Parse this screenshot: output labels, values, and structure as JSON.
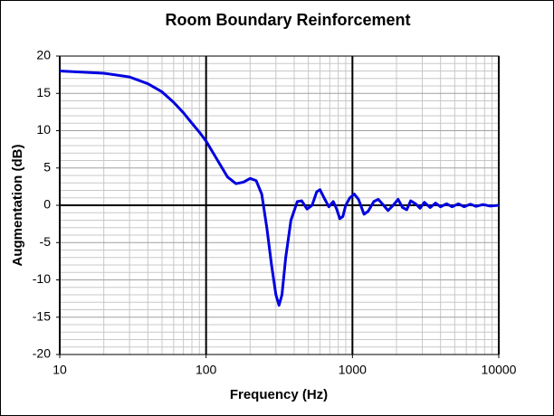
{
  "chart_data": {
    "type": "line",
    "title": "Room Boundary Reinforcement",
    "x_label": "Frequency (Hz)",
    "y_label": "Augmentation (dB)",
    "xscale": "log",
    "xlim": [
      10,
      10000
    ],
    "ylim": [
      -20,
      20
    ],
    "xticks": [
      10,
      100,
      1000,
      10000
    ],
    "yticks": [
      -20,
      -15,
      -10,
      -5,
      0,
      5,
      10,
      15,
      20
    ],
    "minor_xticks": [
      20,
      30,
      40,
      50,
      60,
      70,
      80,
      90,
      200,
      300,
      400,
      500,
      600,
      700,
      800,
      900,
      2000,
      3000,
      4000,
      5000,
      6000,
      7000,
      8000,
      9000
    ],
    "minor_yticks": [
      -19,
      -18,
      -17,
      -16,
      -14,
      -13,
      -12,
      -11,
      -9,
      -8,
      -7,
      -6,
      -4,
      -3,
      -2,
      -1,
      1,
      2,
      3,
      4,
      6,
      7,
      8,
      9,
      11,
      12,
      13,
      14,
      16,
      17,
      18,
      19
    ],
    "grid": true,
    "series": [
      {
        "name": "Augmentation",
        "color": "#0000e0",
        "x": [
          10,
          20,
          30,
          40,
          50,
          60,
          70,
          80,
          90,
          100,
          120,
          140,
          160,
          180,
          200,
          220,
          240,
          260,
          280,
          300,
          315,
          330,
          350,
          380,
          420,
          450,
          490,
          530,
          570,
          600,
          640,
          690,
          740,
          780,
          820,
          860,
          900,
          960,
          1030,
          1100,
          1200,
          1280,
          1400,
          1500,
          1600,
          1750,
          1900,
          2050,
          2200,
          2350,
          2500,
          2700,
          2900,
          3100,
          3400,
          3700,
          4000,
          4400,
          4800,
          5300,
          5800,
          6400,
          7000,
          7800,
          8700,
          10000
        ],
        "values": [
          18,
          17.7,
          17.2,
          16.3,
          15.2,
          13.8,
          12.4,
          11,
          9.8,
          8.6,
          6,
          3.8,
          2.9,
          3.1,
          3.6,
          3.3,
          1.5,
          -3,
          -8,
          -12,
          -13.4,
          -12,
          -7,
          -2,
          0.5,
          0.6,
          -0.5,
          0,
          1.8,
          2.1,
          1,
          -0.2,
          0.5,
          -0.5,
          -1.8,
          -1.5,
          0,
          1,
          1.5,
          0.8,
          -1.2,
          -0.8,
          0.5,
          0.8,
          0.2,
          -0.7,
          0,
          0.8,
          -0.3,
          -0.6,
          0.6,
          0.2,
          -0.4,
          0.4,
          -0.3,
          0.3,
          -0.2,
          0.2,
          -0.2,
          0.2,
          -0.2,
          0.15,
          -0.15,
          0.1,
          -0.1,
          0
        ]
      }
    ]
  }
}
